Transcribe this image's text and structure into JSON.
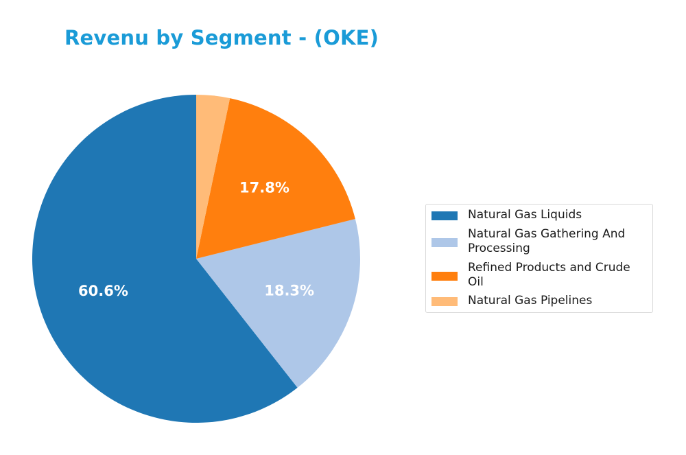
{
  "title": "Revenu by Segment - (OKE)",
  "chart_data": {
    "type": "pie",
    "title": "Revenu by Segment - (OKE)",
    "start_angle": "90deg (top), counterclockwise",
    "categories": [
      "Natural Gas Liquids",
      "Natural Gas Gathering And Processing",
      "Refined Products and Crude Oil",
      "Natural Gas Pipelines"
    ],
    "values": [
      60.6,
      18.3,
      17.8,
      3.3
    ],
    "value_labels": [
      "60.6%",
      "18.3%",
      "17.8%",
      ""
    ],
    "colors": [
      "#1f77b4",
      "#aec7e8",
      "#ff7f0e",
      "#ffbb78"
    ],
    "legend_position": "right"
  },
  "legend": {
    "items": [
      {
        "label_line1": "Natural Gas Liquids",
        "label_line2": "",
        "color": "#1f77b4"
      },
      {
        "label_line1": "Natural Gas Gathering And",
        "label_line2": "Processing",
        "color": "#aec7e8"
      },
      {
        "label_line1": "Refined Products and Crude",
        "label_line2": "Oil",
        "color": "#ff7f0e"
      },
      {
        "label_line1": "Natural Gas Pipelines",
        "label_line2": "",
        "color": "#ffbb78"
      }
    ]
  }
}
